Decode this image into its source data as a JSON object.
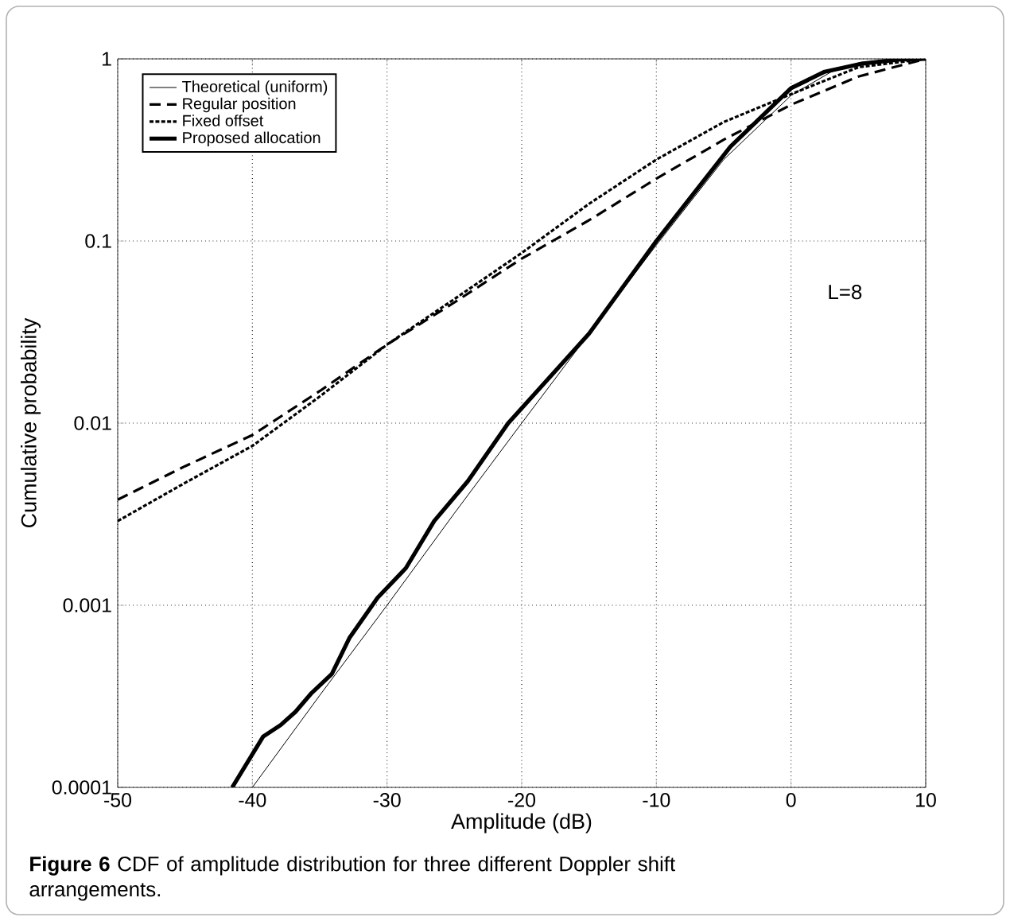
{
  "chart_data": {
    "type": "line",
    "xlabel": "Amplitude (dB)",
    "ylabel": "Cumulative probability",
    "xlim": [
      -50,
      10
    ],
    "ylim": [
      0.0001,
      1
    ],
    "xticks": [
      -50,
      -40,
      -30,
      -20,
      -10,
      0,
      10
    ],
    "yticks": [
      0.0001,
      0.001,
      0.01,
      0.1,
      1
    ],
    "log": "y",
    "grid": true,
    "legend": "top left",
    "marker": "none",
    "series": [
      {
        "name": "Theoretical (uniform)",
        "color": "#000000",
        "line_style": "solid",
        "x": [
          -40,
          -35,
          -30,
          -25,
          -20,
          -15,
          -10,
          -5,
          0,
          3,
          5,
          7,
          9
        ],
        "values": [
          0.0001,
          0.00032,
          0.001,
          0.0032,
          0.01,
          0.031,
          0.095,
          0.28,
          0.63,
          0.85,
          0.95,
          0.99,
          1
        ]
      },
      {
        "name": "Regular position",
        "color": "#000000",
        "line_style": "dashed",
        "x": [
          -50,
          -45,
          -40,
          -35,
          -30,
          -25,
          -20,
          -15,
          -10,
          -5,
          0,
          5,
          10
        ],
        "values": [
          0.0038,
          0.0058,
          0.0086,
          0.015,
          0.027,
          0.046,
          0.08,
          0.13,
          0.22,
          0.36,
          0.56,
          0.8,
          1
        ]
      },
      {
        "name": "Fixed offset",
        "color": "#000000",
        "line_style": "dotted",
        "x": [
          -50,
          -45,
          -40,
          -35,
          -30,
          -25,
          -20,
          -15,
          -10,
          -5,
          0,
          5,
          10
        ],
        "values": [
          0.0029,
          0.0047,
          0.0075,
          0.014,
          0.027,
          0.048,
          0.086,
          0.16,
          0.28,
          0.45,
          0.64,
          0.9,
          1
        ]
      },
      {
        "name": "Proposed allocation",
        "color": "#000000",
        "line_style": "solid",
        "x": [
          -41.5,
          -39.2,
          -37.9,
          -36.8,
          -35.6,
          -34.1,
          -32.8,
          -30.7,
          -28.6,
          -26.5,
          -24,
          -21,
          -15,
          -10,
          -4.5,
          0,
          2.5,
          5.2,
          8,
          10
        ],
        "values": [
          0.0001,
          0.00019,
          0.00022,
          0.00026,
          0.00033,
          0.00042,
          0.00066,
          0.0011,
          0.0016,
          0.0029,
          0.0048,
          0.01,
          0.031,
          0.1,
          0.33,
          0.69,
          0.85,
          0.94,
          0.99,
          1
        ]
      }
    ],
    "annotations": [
      "L=8",
      "**Figure 6** CDF of amplitude distribution for three different Doppler shift arrangements."
    ]
  }
}
